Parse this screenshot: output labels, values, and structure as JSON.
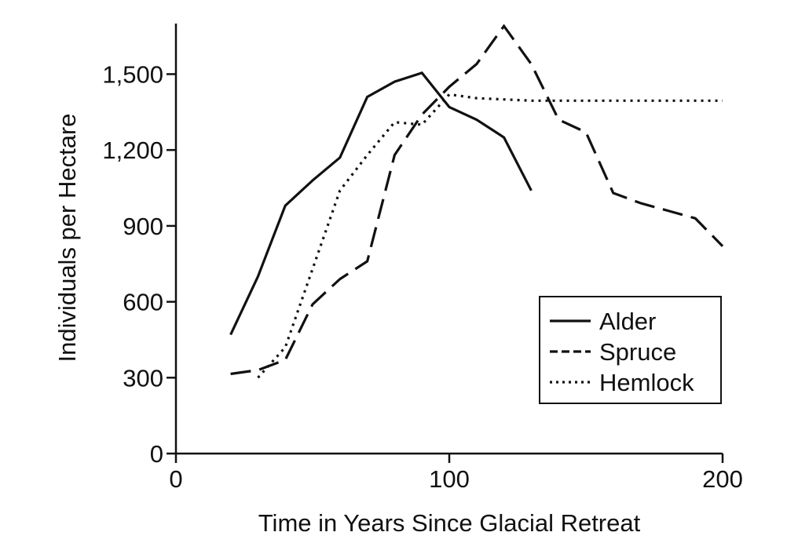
{
  "chart_data": {
    "type": "line",
    "title": "",
    "xlabel": "Time in Years Since Glacial Retreat",
    "ylabel": "Individuals per Hectare",
    "xlim": [
      0,
      200
    ],
    "ylim": [
      0,
      1700
    ],
    "x_ticks": [
      0,
      100,
      200
    ],
    "x_tick_labels": [
      "0",
      "100",
      "200"
    ],
    "y_ticks": [
      0,
      300,
      600,
      900,
      1200,
      1500
    ],
    "y_tick_labels": [
      "0",
      "300",
      "600",
      "900",
      "1,200",
      "1,500"
    ],
    "grid": false,
    "legend_position": "bottom-right",
    "series": [
      {
        "name": "Alder",
        "style": "solid",
        "x": [
          20,
          30,
          40,
          50,
          60,
          70,
          80,
          90,
          100,
          110,
          120,
          130
        ],
        "y": [
          470,
          700,
          980,
          1080,
          1170,
          1410,
          1470,
          1505,
          1370,
          1320,
          1250,
          1040
        ]
      },
      {
        "name": "Spruce",
        "style": "dashed",
        "x": [
          20,
          30,
          40,
          50,
          60,
          70,
          80,
          90,
          100,
          110,
          120,
          130,
          140,
          150,
          160,
          170,
          180,
          190,
          200
        ],
        "y": [
          315,
          330,
          370,
          590,
          690,
          760,
          1180,
          1340,
          1450,
          1540,
          1690,
          1540,
          1320,
          1270,
          1030,
          990,
          960,
          930,
          820
        ]
      },
      {
        "name": "Hemlock",
        "style": "dotted",
        "x": [
          30,
          40,
          50,
          60,
          70,
          80,
          90,
          100,
          110,
          120,
          130,
          140,
          150,
          160,
          170,
          180,
          190,
          200
        ],
        "y": [
          300,
          420,
          730,
          1040,
          1180,
          1310,
          1300,
          1420,
          1405,
          1400,
          1395,
          1395,
          1395,
          1395,
          1395,
          1395,
          1395,
          1395
        ]
      }
    ]
  }
}
